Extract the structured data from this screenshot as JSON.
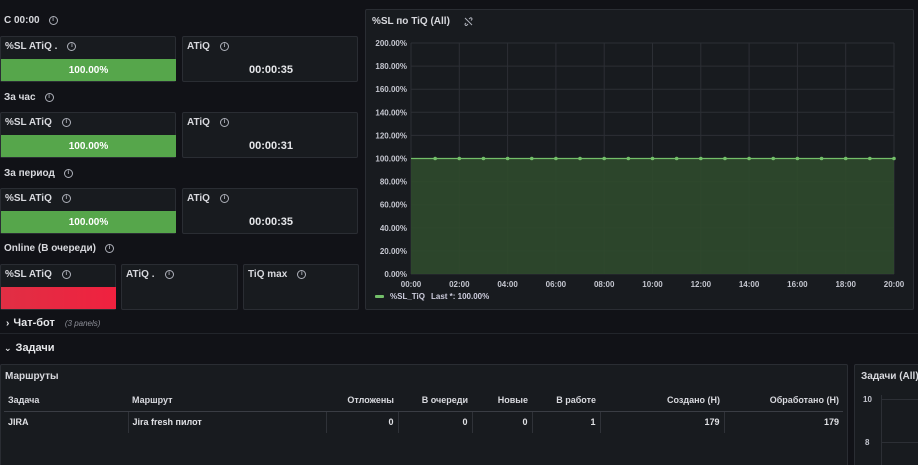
{
  "sections": {
    "since_midnight": "С 00:00",
    "per_hour": "За час",
    "per_period": "За период",
    "online": "Online (В очереди)"
  },
  "stats": {
    "midnight": {
      "sl_title": "%SL ATiQ .",
      "sl_value": "100.00%",
      "sl_percent": 100,
      "atiq_title": "ATiQ",
      "atiq_value": "00:00:35"
    },
    "hour": {
      "sl_title": "%SL ATiQ",
      "sl_value": "100.00%",
      "sl_percent": 100,
      "atiq_title": "ATiQ",
      "atiq_value": "00:00:31"
    },
    "period": {
      "sl_title": "%SL ATiQ",
      "sl_value": "100.00%",
      "sl_percent": 100,
      "atiq_title": "ATiQ",
      "atiq_value": "00:00:35"
    },
    "online": {
      "sl_title": "%SL ATiQ",
      "atiq_title": "ATiQ .",
      "tiq_title": "TiQ max"
    }
  },
  "colors": {
    "green": "#56a64b",
    "red": "#e02f44",
    "line": "#73bf69"
  },
  "chart_panel": {
    "title": "%SL по TiQ (All)",
    "legend_label": "%SL_TiQ",
    "legend_last": "Last *: 100.00%"
  },
  "chart_data": {
    "type": "area",
    "title": "%SL по TiQ (All)",
    "x_ticks": [
      "00:00",
      "02:00",
      "04:00",
      "06:00",
      "08:00",
      "10:00",
      "12:00",
      "14:00",
      "16:00",
      "18:00",
      "20:00"
    ],
    "y_ticks": [
      "200.00%",
      "180.00%",
      "160.00%",
      "140.00%",
      "120.00%",
      "100.00%",
      "80.00%",
      "60.00%",
      "40.00%",
      "20.00%",
      "0.00%"
    ],
    "ylim": [
      0,
      200
    ],
    "xlim": [
      0,
      20
    ],
    "grid": true,
    "legend_position": "bottom-left",
    "series": [
      {
        "name": "%SL_TiQ",
        "x": [
          1,
          2,
          3,
          4,
          5,
          6,
          7,
          8,
          9,
          10,
          11,
          12,
          13,
          14,
          15,
          16,
          17,
          18,
          19,
          20
        ],
        "values": [
          100,
          100,
          100,
          100,
          100,
          100,
          100,
          100,
          100,
          100,
          100,
          100,
          100,
          100,
          100,
          100,
          100,
          100,
          100,
          100
        ]
      }
    ]
  },
  "rows": {
    "chatbot": {
      "title": "Чат-бот",
      "subtitle": "(3 panels)"
    },
    "tasks": {
      "title": "Задачи"
    }
  },
  "routes_panel": {
    "title": "Маршруты",
    "columns": [
      "Задача",
      "Маршрут",
      "Отложены",
      "В очереди",
      "Новые",
      "В работе",
      "Создано (Н)",
      "Обработано (Н)"
    ],
    "rows": [
      [
        "JIRA",
        "Jira fresh пилот",
        "0",
        "0",
        "0",
        "1",
        "179",
        "179"
      ]
    ]
  },
  "tasks_panel": {
    "title": "Задачи (All)",
    "y_ticks": [
      "10",
      "8"
    ]
  }
}
